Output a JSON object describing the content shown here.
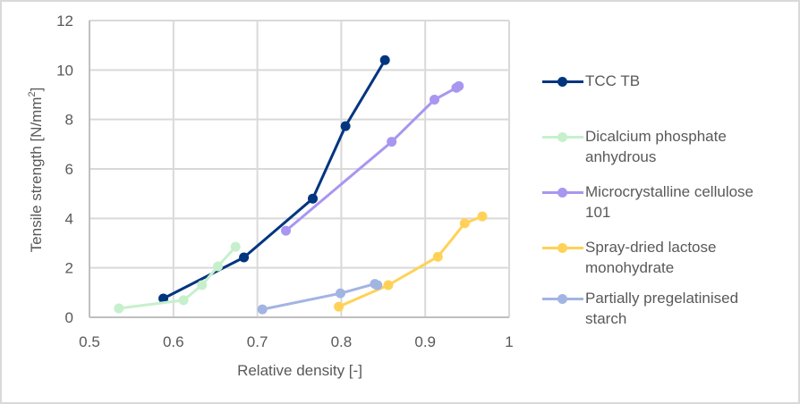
{
  "chart_data": {
    "type": "line",
    "title": "",
    "xlabel": "Relative density [-]",
    "ylabel": "Tensile strength [N/mm",
    "ylabel_superscript": "2",
    "ylabel_suffix": "]",
    "xlim": [
      0.5,
      1
    ],
    "ylim": [
      0,
      12
    ],
    "x_ticks": [
      "0.5",
      "0.6",
      "0.7",
      "0.8",
      "0.9",
      "1"
    ],
    "x_tick_values": [
      0.5,
      0.6,
      0.7,
      0.8,
      0.9,
      1.0
    ],
    "y_ticks": [
      "0",
      "2",
      "4",
      "6",
      "8",
      "10",
      "12"
    ],
    "y_tick_values": [
      0,
      2,
      4,
      6,
      8,
      10,
      12
    ],
    "grid": true,
    "legend_position": "right",
    "series": [
      {
        "name": "TCC TB",
        "color": "#003580",
        "x": [
          0.588,
          0.684,
          0.766,
          0.805,
          0.852
        ],
        "y": [
          0.76,
          2.42,
          4.8,
          7.73,
          10.4
        ]
      },
      {
        "name": "Dicalcium phosphate anhydrous",
        "color": "#c6f0cc",
        "x": [
          0.535,
          0.612,
          0.634,
          0.653,
          0.674
        ],
        "y": [
          0.36,
          0.69,
          1.3,
          2.06,
          2.85
        ]
      },
      {
        "name": "Microcrystalline cellulose 101",
        "color": "#a996f0",
        "x": [
          0.734,
          0.86,
          0.911,
          0.937,
          0.94
        ],
        "y": [
          3.5,
          7.1,
          8.8,
          9.28,
          9.35
        ]
      },
      {
        "name": "Spray-dried lactose monohydrate",
        "color": "#ffd257",
        "x": [
          0.797,
          0.856,
          0.915,
          0.947,
          0.968
        ],
        "y": [
          0.43,
          1.3,
          2.45,
          3.8,
          4.08
        ]
      },
      {
        "name": "Partially pregelatinised starch",
        "color": "#a2b4e2",
        "x": [
          0.706,
          0.799,
          0.84,
          0.843
        ],
        "y": [
          0.32,
          0.97,
          1.35,
          1.3
        ]
      }
    ]
  },
  "legend": {
    "items": [
      {
        "lines": [
          "TCC TB"
        ]
      },
      {
        "lines": [
          "Dicalcium phosphate",
          "anhydrous"
        ]
      },
      {
        "lines": [
          "Microcrystalline cellulose",
          "101"
        ]
      },
      {
        "lines": [
          "Spray-dried lactose",
          "monohydrate"
        ]
      },
      {
        "lines": [
          "Partially pregelatinised",
          "starch"
        ]
      }
    ]
  }
}
